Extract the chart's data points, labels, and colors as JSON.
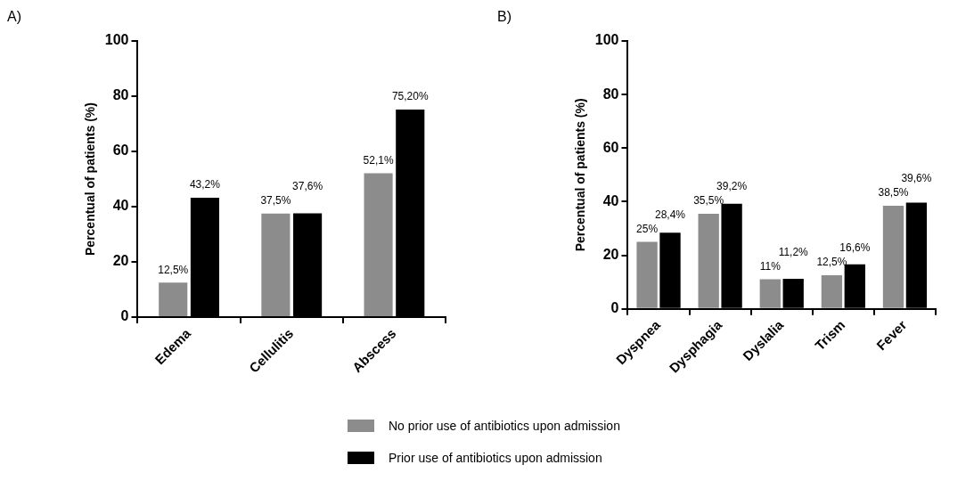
{
  "chart_data": [
    {
      "type": "bar",
      "title": "A)",
      "ylabel": "Percentual of patients (%)",
      "categories": [
        "Edema",
        "Cellulitis",
        "Abscess"
      ],
      "ylim": [
        0,
        100
      ],
      "yticks": [
        0,
        20,
        40,
        60,
        80,
        100
      ],
      "grid": false,
      "legend": "bottom",
      "series": [
        {
          "name": "No prior use of antibiotics upon admission",
          "color": "#8c8c8c",
          "values": [
            12.5,
            37.5,
            52.1
          ],
          "value_labels": [
            "12,5%",
            "37,5%",
            "52,1%"
          ]
        },
        {
          "name": "Prior use of antibiotics upon admission",
          "color": "#000000",
          "values": [
            43.2,
            37.6,
            75.2
          ],
          "value_labels": [
            "43,2%",
            "37,6%",
            "75,20%"
          ]
        }
      ]
    },
    {
      "type": "bar",
      "title": "B)",
      "ylabel": "Percentual of patients (%)",
      "categories": [
        "Dyspnea",
        "Dysphagia",
        "Dyslalia",
        "Trism",
        "Fever"
      ],
      "ylim": [
        0,
        100
      ],
      "yticks": [
        0,
        20,
        40,
        60,
        80,
        100
      ],
      "grid": false,
      "series": [
        {
          "color": "#8c8c8c",
          "values": [
            25,
            35.5,
            11,
            12.5,
            38.5
          ],
          "value_labels": [
            "25%",
            "35,5%",
            "11%",
            "12,5%",
            "38,5%"
          ]
        },
        {
          "color": "#000000",
          "values": [
            28.4,
            39.2,
            11.2,
            16.6,
            39.6
          ],
          "value_labels": [
            "28,4%",
            "39,2%",
            "11,2%",
            "16,6%",
            "39,6%"
          ]
        }
      ]
    }
  ]
}
